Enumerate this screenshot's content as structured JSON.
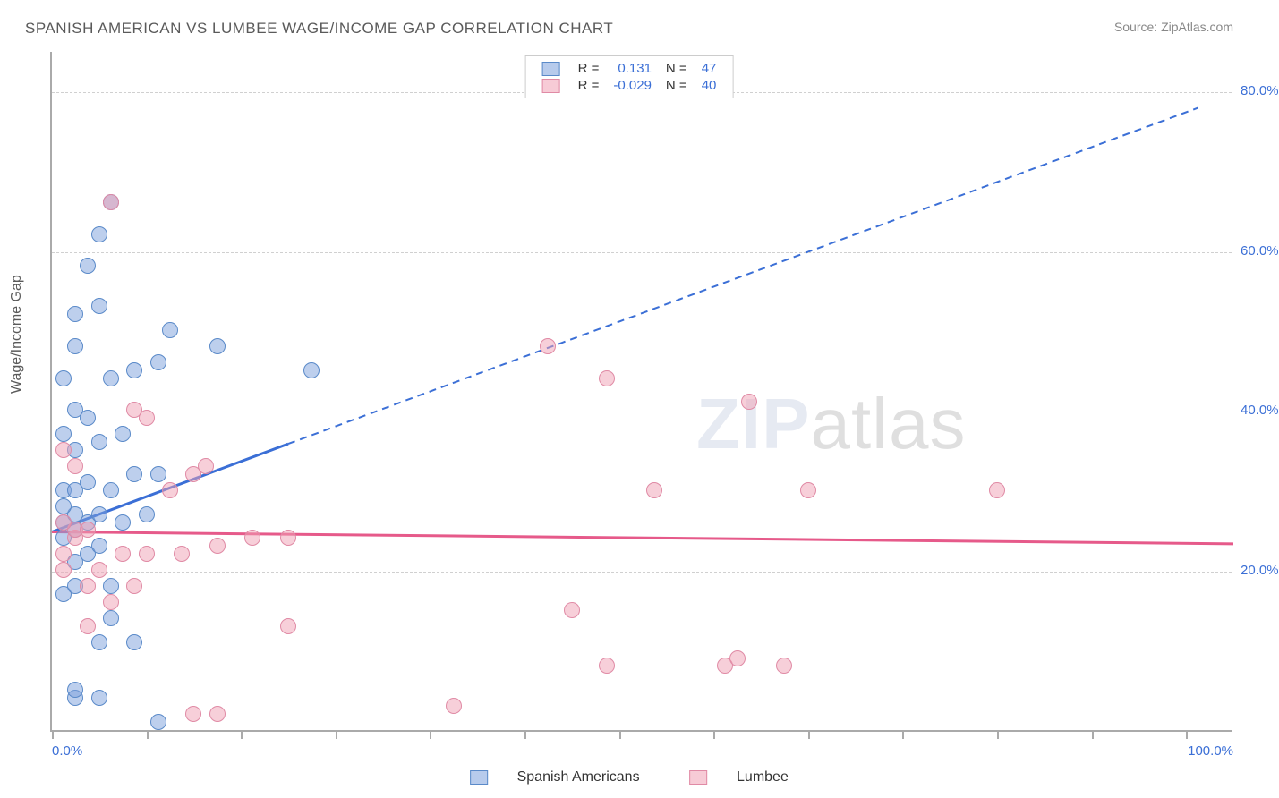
{
  "title": "SPANISH AMERICAN VS LUMBEE WAGE/INCOME GAP CORRELATION CHART",
  "source": "Source: ZipAtlas.com",
  "ylabel": "Wage/Income Gap",
  "watermark": {
    "zip": "ZIP",
    "atlas": "atlas"
  },
  "chart": {
    "type": "scatter",
    "background_color": "#ffffff",
    "grid_color": "#d0d0d0",
    "axis_color": "#aaaaaa",
    "label_color": "#3b6fd6",
    "text_color": "#5a5a5a",
    "title_fontsize": 17,
    "label_fontsize": 15,
    "xlim": [
      0,
      100
    ],
    "ylim": [
      0,
      85
    ],
    "yticks": [
      {
        "value": 20,
        "label": "20.0%"
      },
      {
        "value": 40,
        "label": "40.0%"
      },
      {
        "value": 60,
        "label": "60.0%"
      },
      {
        "value": 80,
        "label": "80.0%"
      }
    ],
    "xtick_positions": [
      0,
      8,
      16,
      24,
      32,
      40,
      48,
      56,
      64,
      72,
      80,
      88,
      96
    ],
    "xaxis_labels": {
      "min": "0.0%",
      "max": "100.0%"
    },
    "series": [
      {
        "key": "spanish_americans",
        "name": "Spanish Americans",
        "color_fill": "rgba(123,160,220,0.5)",
        "color_stroke": "#5a8ac9",
        "line_color": "#3b6fd6",
        "marker_radius": 9,
        "points": [
          [
            2,
            4
          ],
          [
            4,
            4
          ],
          [
            2,
            5
          ],
          [
            9,
            1
          ],
          [
            4,
            11
          ],
          [
            7,
            11
          ],
          [
            5,
            14
          ],
          [
            1,
            17
          ],
          [
            2,
            18
          ],
          [
            5,
            18
          ],
          [
            2,
            21
          ],
          [
            3,
            22
          ],
          [
            4,
            23
          ],
          [
            1,
            24
          ],
          [
            2,
            25
          ],
          [
            3,
            26
          ],
          [
            1,
            26
          ],
          [
            2,
            27
          ],
          [
            1,
            28
          ],
          [
            4,
            27
          ],
          [
            6,
            26
          ],
          [
            8,
            27
          ],
          [
            1,
            30
          ],
          [
            2,
            30
          ],
          [
            3,
            31
          ],
          [
            5,
            30
          ],
          [
            7,
            32
          ],
          [
            9,
            32
          ],
          [
            2,
            35
          ],
          [
            4,
            36
          ],
          [
            6,
            37
          ],
          [
            1,
            37
          ],
          [
            2,
            40
          ],
          [
            3,
            39
          ],
          [
            5,
            44
          ],
          [
            7,
            45
          ],
          [
            9,
            46
          ],
          [
            14,
            48
          ],
          [
            10,
            50
          ],
          [
            22,
            45
          ],
          [
            2,
            48
          ],
          [
            4,
            53
          ],
          [
            3,
            58
          ],
          [
            4,
            62
          ],
          [
            2,
            52
          ],
          [
            5,
            66
          ],
          [
            1,
            44
          ]
        ],
        "regression": {
          "solid": {
            "x1": 0,
            "y1": 25,
            "x2": 20,
            "y2": 36
          },
          "dashed": {
            "x1": 20,
            "y1": 36,
            "x2": 97,
            "y2": 78
          }
        }
      },
      {
        "key": "lumbee",
        "name": "Lumbee",
        "color_fill": "rgba(240,160,180,0.5)",
        "color_stroke": "#e08aa5",
        "line_color": "#e65a8a",
        "marker_radius": 9,
        "points": [
          [
            12,
            2
          ],
          [
            14,
            2
          ],
          [
            34,
            3
          ],
          [
            44,
            15
          ],
          [
            47,
            8
          ],
          [
            57,
            8
          ],
          [
            62,
            8
          ],
          [
            3,
            13
          ],
          [
            5,
            16
          ],
          [
            7,
            18
          ],
          [
            3,
            18
          ],
          [
            1,
            20
          ],
          [
            4,
            20
          ],
          [
            1,
            22
          ],
          [
            2,
            24
          ],
          [
            2,
            25
          ],
          [
            1,
            26
          ],
          [
            3,
            25
          ],
          [
            6,
            22
          ],
          [
            8,
            22
          ],
          [
            11,
            22
          ],
          [
            14,
            23
          ],
          [
            17,
            24
          ],
          [
            20,
            24
          ],
          [
            10,
            30
          ],
          [
            12,
            32
          ],
          [
            13,
            33
          ],
          [
            7,
            40
          ],
          [
            8,
            39
          ],
          [
            1,
            35
          ],
          [
            2,
            33
          ],
          [
            5,
            66
          ],
          [
            42,
            48
          ],
          [
            47,
            44
          ],
          [
            59,
            41
          ],
          [
            51,
            30
          ],
          [
            64,
            30
          ],
          [
            80,
            30
          ],
          [
            58,
            9
          ],
          [
            20,
            13
          ]
        ],
        "regression": {
          "solid": {
            "x1": 0,
            "y1": 25,
            "x2": 100,
            "y2": 23.5
          },
          "dashed": null
        }
      }
    ]
  },
  "legend_top": {
    "rows": [
      {
        "swatch": "blue",
        "R_label": "R =",
        "R": "0.131",
        "N_label": "N =",
        "N": "47"
      },
      {
        "swatch": "pink",
        "R_label": "R =",
        "R": "-0.029",
        "N_label": "N =",
        "N": "40"
      }
    ]
  },
  "legend_bottom": [
    {
      "swatch": "blue",
      "label": "Spanish Americans"
    },
    {
      "swatch": "pink",
      "label": "Lumbee"
    }
  ]
}
